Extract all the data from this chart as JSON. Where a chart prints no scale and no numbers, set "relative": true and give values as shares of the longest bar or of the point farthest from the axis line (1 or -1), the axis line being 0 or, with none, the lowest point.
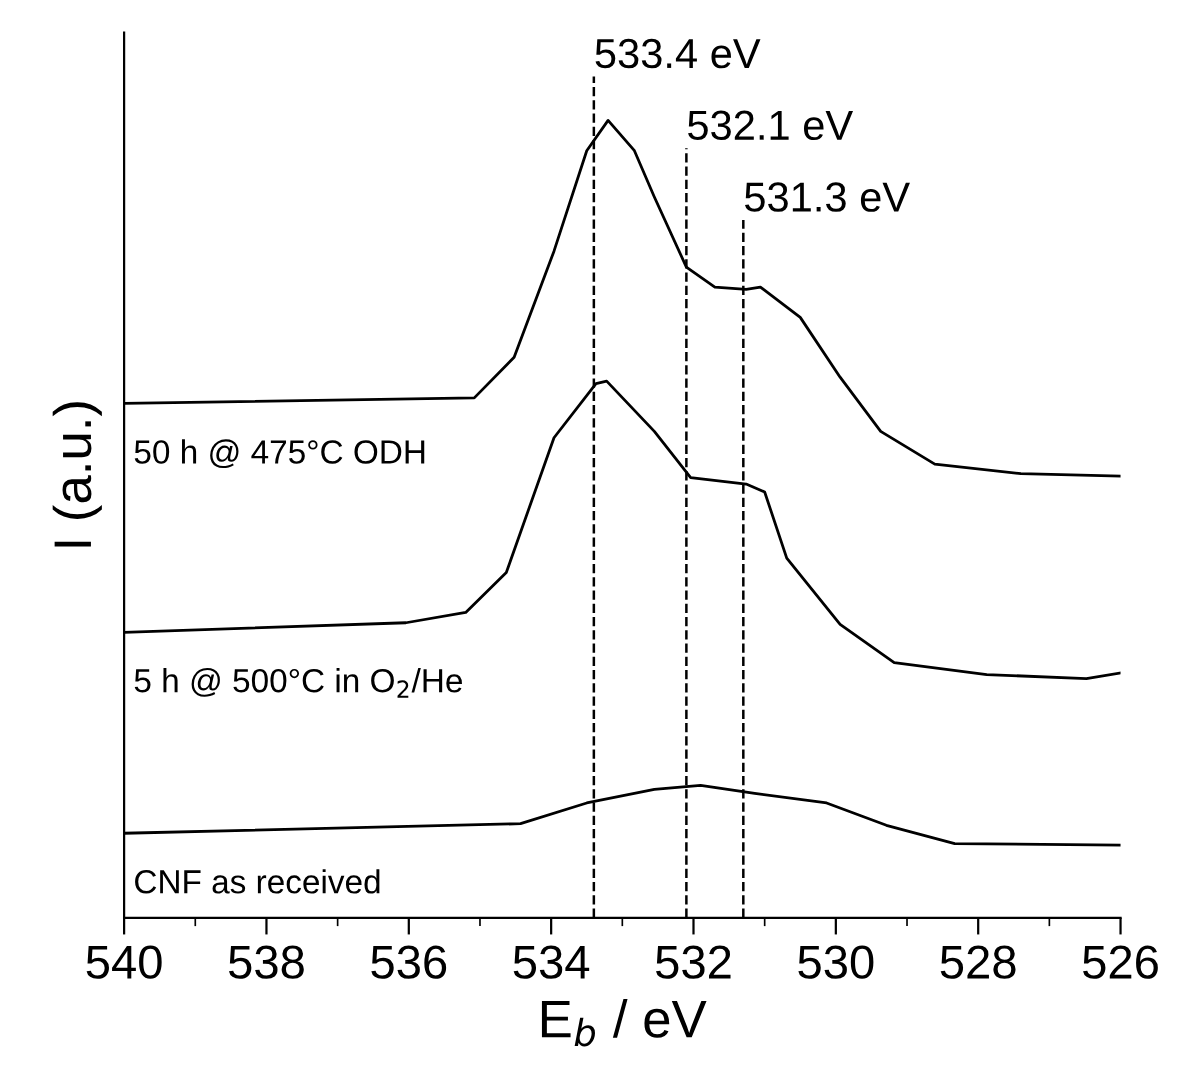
{
  "chart_data": {
    "type": "line",
    "relative": true,
    "xlabel": "E$_{b}$ / eV",
    "ylabel": "I (a.u.)",
    "xlim": [
      540,
      526
    ],
    "xticks": [
      540,
      538,
      536,
      534,
      532,
      530,
      528,
      526
    ],
    "tick_labels": "x",
    "grid": false,
    "legend": false,
    "marker": "none",
    "line_style": "solid",
    "series": [
      {
        "name": "50 h @ 475°C ODH",
        "color": "#000000",
        "x": [
          540,
          535.08,
          534.52,
          533.96,
          533.5,
          533.2,
          532.83,
          532.55,
          532.1,
          531.7,
          531.26,
          531.06,
          530.5,
          529.94,
          529.37,
          528.61,
          527.4,
          526
        ],
        "values": [
          0.645,
          0.652,
          0.703,
          0.836,
          0.962,
          1.0,
          0.962,
          0.904,
          0.816,
          0.791,
          0.788,
          0.791,
          0.753,
          0.678,
          0.61,
          0.569,
          0.557,
          0.554
        ]
      },
      {
        "name": "5 h @ 500°C in O$_{2}$/He",
        "color": "#000000",
        "x": [
          540,
          536.04,
          535.2,
          534.63,
          533.96,
          533.37,
          533.22,
          532.55,
          532.04,
          531.26,
          531.0,
          530.69,
          529.94,
          529.18,
          527.88,
          526.48,
          526
        ],
        "values": [
          0.358,
          0.37,
          0.383,
          0.433,
          0.602,
          0.67,
          0.673,
          0.61,
          0.552,
          0.544,
          0.534,
          0.451,
          0.368,
          0.32,
          0.305,
          0.3,
          0.307
        ]
      },
      {
        "name": "CNF as received",
        "color": "#000000",
        "x": [
          540,
          534.43,
          533.5,
          532.55,
          531.9,
          531.14,
          530.13,
          529.29,
          528.33,
          526
        ],
        "values": [
          0.106,
          0.118,
          0.144,
          0.161,
          0.166,
          0.156,
          0.144,
          0.116,
          0.093,
          0.091
        ]
      }
    ],
    "ref_lines": [
      {
        "axis": "x",
        "value": 533.4,
        "label": "533.4 eV",
        "color": "#000000",
        "line_style": "dashed"
      },
      {
        "axis": "x",
        "value": 532.1,
        "label": "532.1 eV",
        "color": "#000000",
        "line_style": "dashed"
      },
      {
        "axis": "x",
        "value": 531.3,
        "label": "531.3 eV",
        "color": "#000000",
        "line_style": "dashed"
      }
    ]
  }
}
